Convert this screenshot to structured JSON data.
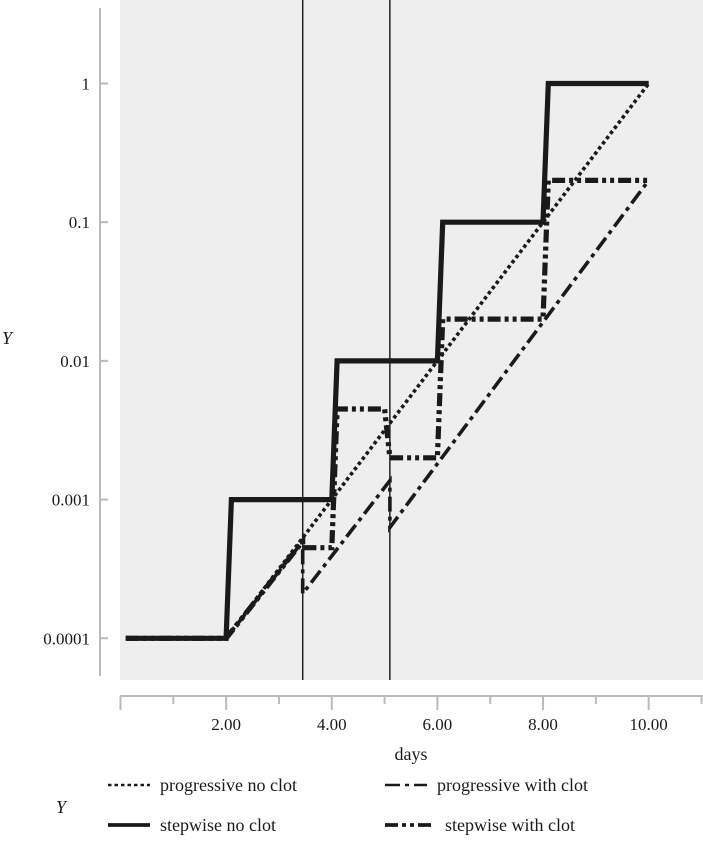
{
  "chart_data": {
    "type": "line",
    "y_scale": "log",
    "xlabel": "days",
    "ylabel": "Y",
    "xlim": [
      0,
      11
    ],
    "ylim": [
      5e-05,
      4
    ],
    "x_ticks": [
      {
        "value": 2,
        "label": "2.00"
      },
      {
        "value": 4,
        "label": "4.00"
      },
      {
        "value": 6,
        "label": "6.00"
      },
      {
        "value": 8,
        "label": "8.00"
      },
      {
        "value": 10,
        "label": "10.00"
      }
    ],
    "y_ticks": [
      {
        "value": 0.0001,
        "label": "0.0001"
      },
      {
        "value": 0.001,
        "label": "0.001"
      },
      {
        "value": 0.01,
        "label": "0.01"
      },
      {
        "value": 0.1,
        "label": "0.1"
      },
      {
        "value": 1,
        "label": "1"
      }
    ],
    "reference_lines_x": [
      3.45,
      5.1
    ],
    "grid": false,
    "legend_position": "bottom",
    "legend_title": "Y",
    "series": [
      {
        "name": "progressive no clot",
        "style": "dotted",
        "points": [
          [
            0.1,
            0.0001
          ],
          [
            2.0,
            0.0001
          ],
          [
            10.0,
            1.0
          ]
        ]
      },
      {
        "name": "progressive with clot",
        "style": "dashdot",
        "points": [
          [
            0.1,
            0.0001
          ],
          [
            2.0,
            0.0001
          ],
          [
            3.45,
            0.0005
          ],
          [
            3.45,
            0.00021
          ],
          [
            5.1,
            0.00137
          ],
          [
            5.1,
            0.00063
          ],
          [
            10.0,
            0.2
          ]
        ]
      },
      {
        "name": "stepwise no clot",
        "style": "solid",
        "points": [
          [
            0.1,
            0.0001
          ],
          [
            2.0,
            0.0001
          ],
          [
            2.1,
            0.001
          ],
          [
            4.0,
            0.001
          ],
          [
            4.1,
            0.01
          ],
          [
            6.0,
            0.01
          ],
          [
            6.1,
            0.1
          ],
          [
            8.0,
            0.1
          ],
          [
            8.1,
            1.0
          ],
          [
            10.0,
            1.0
          ]
        ]
      },
      {
        "name": "stepwise with clot",
        "style": "dashdotdot",
        "points": [
          [
            0.1,
            0.0001
          ],
          [
            2.0,
            0.0001
          ],
          [
            3.45,
            0.0005
          ],
          [
            3.45,
            0.00045
          ],
          [
            4.0,
            0.00045
          ],
          [
            4.1,
            0.0045
          ],
          [
            5.0,
            0.0045
          ],
          [
            5.1,
            0.002
          ],
          [
            6.0,
            0.002
          ],
          [
            6.1,
            0.02
          ],
          [
            8.0,
            0.02
          ],
          [
            8.1,
            0.2
          ],
          [
            10.0,
            0.2
          ]
        ]
      }
    ]
  }
}
